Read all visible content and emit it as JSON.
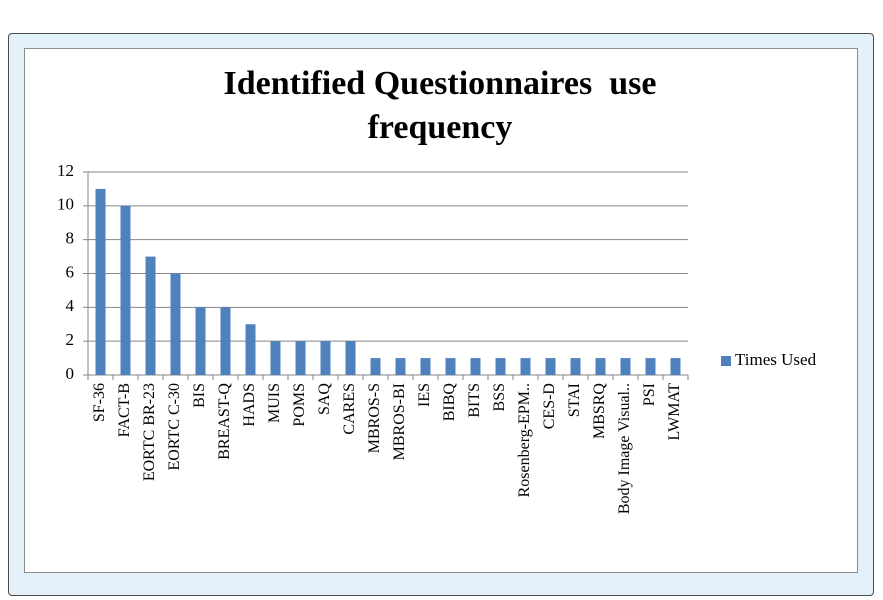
{
  "chart_data": {
    "type": "bar",
    "title": "Identified Questionnaires  use frequency",
    "categories": [
      "SF-36",
      "FACT-B",
      "EORTC BR-23",
      "EORTC  C-30",
      "BIS",
      "BREAST-Q",
      "HADS",
      "MUIS",
      "POMS",
      "SAQ",
      "CARES",
      "MBROS-S",
      "MBROS-BI",
      "IES",
      "BIBQ",
      "BITS",
      "BSS",
      "Rosenberg-EPM..",
      "CES-D",
      "STAI",
      "MBSRQ",
      "Body Image Visual..",
      "PSI",
      "LWMAT"
    ],
    "series": [
      {
        "name": "Times Used",
        "color": "#4f81bd",
        "values": [
          11,
          10,
          7,
          6,
          4,
          4,
          3,
          2,
          2,
          2,
          2,
          1,
          1,
          1,
          1,
          1,
          1,
          1,
          1,
          1,
          1,
          1,
          1,
          1
        ]
      }
    ],
    "ylim": [
      0,
      12
    ],
    "yticks": [
      0,
      2,
      4,
      6,
      8,
      10,
      12
    ],
    "grid": true,
    "legend": "right"
  }
}
